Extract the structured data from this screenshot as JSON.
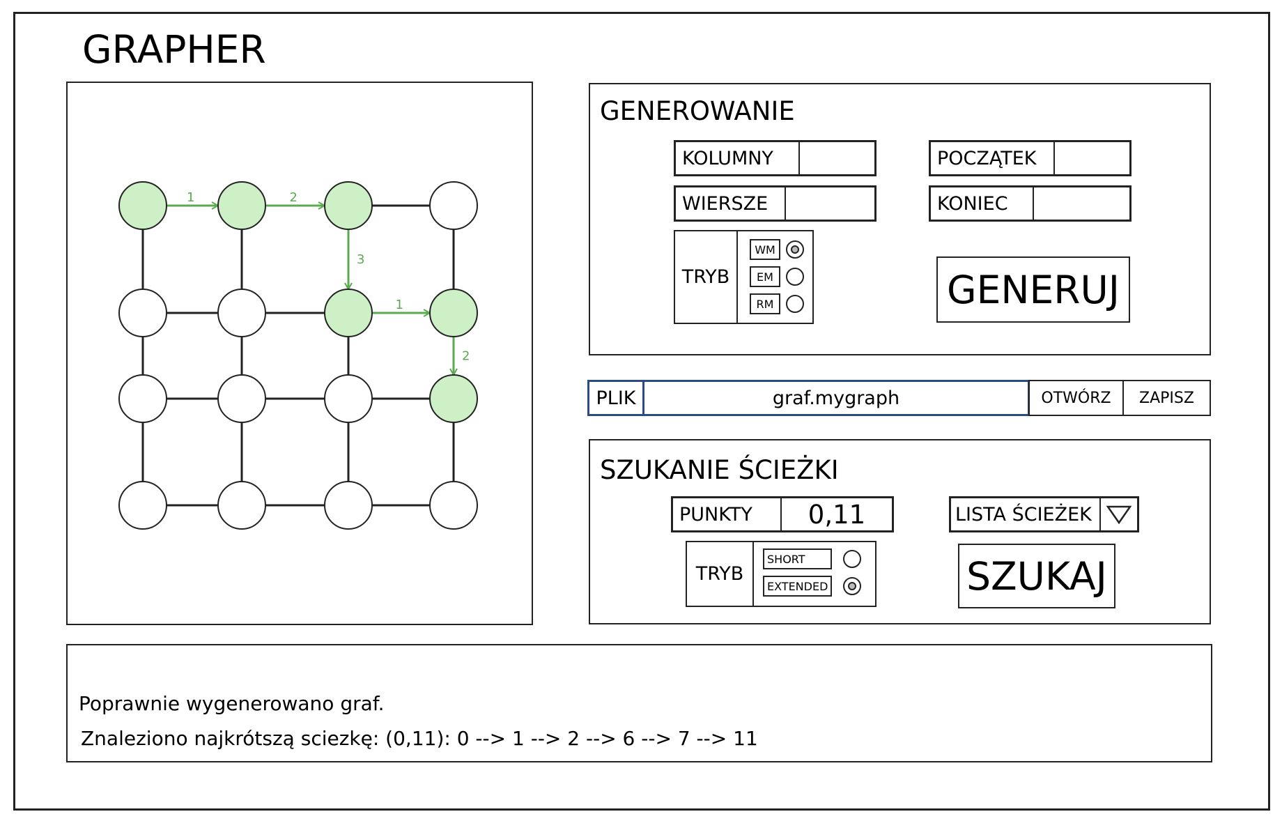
{
  "app": {
    "title": "GRAPHER"
  },
  "graph": {
    "rows": 4,
    "cols": 4,
    "highlighted_nodes": [
      0,
      1,
      2,
      6,
      7,
      11
    ],
    "path_edges": [
      {
        "from": 0,
        "to": 1,
        "weight": "1"
      },
      {
        "from": 1,
        "to": 2,
        "weight": "2"
      },
      {
        "from": 2,
        "to": 6,
        "weight": "3"
      },
      {
        "from": 6,
        "to": 7,
        "weight": "1"
      },
      {
        "from": 7,
        "to": 11,
        "weight": "2"
      }
    ],
    "colors": {
      "node_highlight": "#cdf0c6",
      "path_edge": "#5aaa4f",
      "edge": "#222222",
      "node_border": "#222222"
    }
  },
  "generation": {
    "title": "GENEROWANIE",
    "columns_label": "KOLUMNY",
    "columns_value": "",
    "rows_label": "WIERSZE",
    "rows_value": "",
    "start_label": "POCZĄTEK",
    "start_value": "",
    "end_label": "KONIEC",
    "end_value": "",
    "mode_label": "TRYB",
    "modes": [
      {
        "label": "WM",
        "selected": true
      },
      {
        "label": "EM",
        "selected": false
      },
      {
        "label": "RM",
        "selected": false
      }
    ],
    "button_label": "GENERUJ"
  },
  "file": {
    "label": "PLIK",
    "filename": "graf.mygraph",
    "open_label": "OTWÓRZ",
    "save_label": "ZAPISZ",
    "accent": "#2a4a8a"
  },
  "path_search": {
    "title": "SZUKANIE ŚCIEŻKI",
    "points_label": "PUNKTY",
    "points_value": "0,11",
    "path_list_label": "LISTA ŚCIEŻEK",
    "mode_label": "TRYB",
    "modes": [
      {
        "label": "SHORT",
        "selected": false
      },
      {
        "label": "EXTENDED",
        "selected": true
      }
    ],
    "button_label": "SZUKAJ"
  },
  "log": {
    "lines": [
      "Poprawnie wygenerowano graf.",
      "Znaleziono najkrótszą sciezkę: (0,11): 0 --> 1 --> 2 --> 6 --> 7 --> 11"
    ]
  }
}
